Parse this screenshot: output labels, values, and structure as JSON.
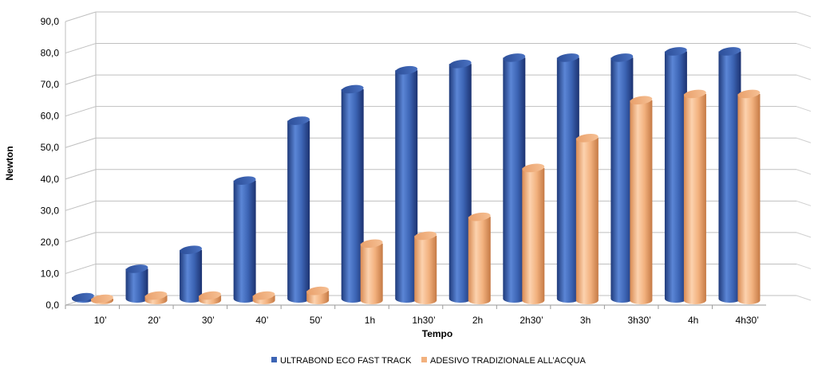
{
  "chart_data": {
    "type": "bar",
    "title": "",
    "xlabel": "Tempo",
    "ylabel": "Newton",
    "ylim": [
      0,
      90
    ],
    "yticks": [
      "0,0",
      "10,0",
      "20,0",
      "30,0",
      "40,0",
      "50,0",
      "60,0",
      "70,0",
      "80,0",
      "90,0"
    ],
    "categories": [
      "10’",
      "20’",
      "30’",
      "40’",
      "50’",
      "1h",
      "1h30’",
      "2h",
      "2h30’",
      "3h",
      "3h30’",
      "4h",
      "4h30’"
    ],
    "series": [
      {
        "name": "ULTRABOND ECO FAST TRACK",
        "color": "#3c64b4",
        "values": [
          0.5,
          9.5,
          15.5,
          37.5,
          56.5,
          66.5,
          72.5,
          74.5,
          76.5,
          76.5,
          76.5,
          78.5,
          78.5
        ]
      },
      {
        "name": "ADESIVO TRADIZIONALE ALL’ACQUA",
        "color": "#f2b17e",
        "values": [
          0.5,
          1.5,
          1.5,
          1.5,
          3.0,
          18.0,
          20.5,
          26.5,
          42.0,
          51.5,
          63.5,
          65.5,
          65.5
        ]
      }
    ],
    "grid": true,
    "legend": "bottom"
  }
}
